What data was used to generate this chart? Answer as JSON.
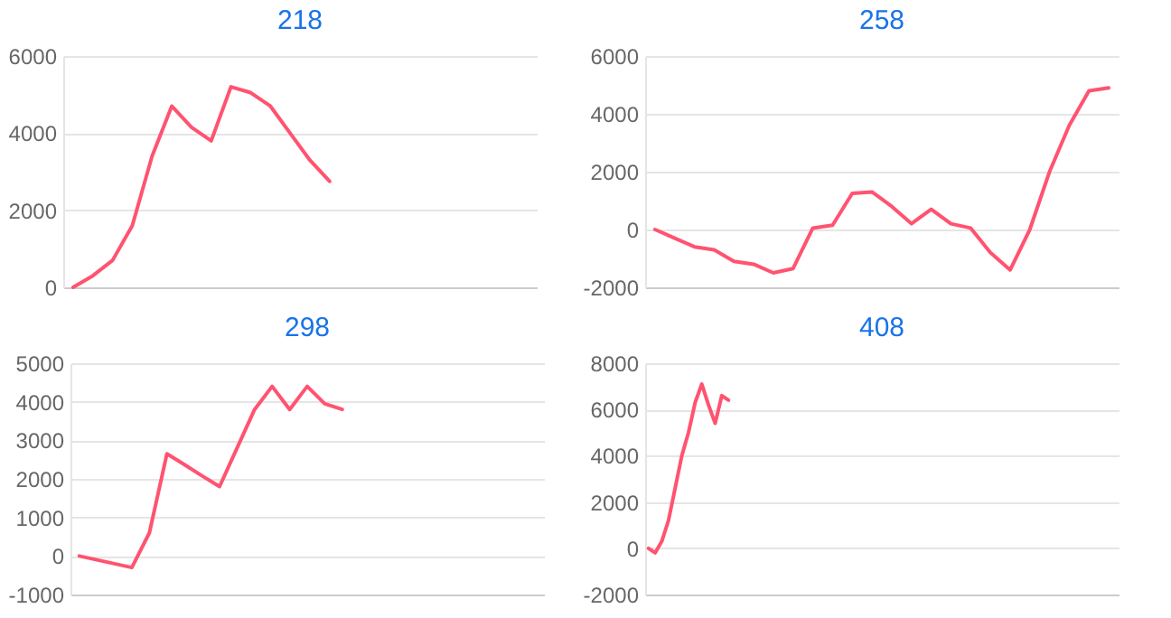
{
  "chart_data": [
    {
      "type": "line",
      "title": "218",
      "categories": [
        null,
        null,
        null,
        null,
        null,
        null,
        null,
        null,
        null,
        null,
        null,
        null,
        null,
        null,
        null,
        null,
        null,
        null,
        null,
        null,
        null,
        null,
        null,
        null
      ],
      "series": [
        {
          "color": "#ff5370",
          "values": [
            0,
            300,
            700,
            1600,
            3400,
            4700,
            4150,
            3800,
            5200,
            5050,
            4700,
            4000,
            3300,
            2750,
            null,
            null,
            null,
            null,
            null,
            null,
            null,
            null,
            null,
            null
          ]
        }
      ],
      "ylim": [
        0,
        6000
      ],
      "yticks": [
        0,
        2000,
        4000,
        6000
      ],
      "grid": "y",
      "tick_labels": "y",
      "marker": "none",
      "line_style": "solid"
    },
    {
      "type": "line",
      "title": "258",
      "categories": [
        null,
        null,
        null,
        null,
        null,
        null,
        null,
        null,
        null,
        null,
        null,
        null,
        null,
        null,
        null,
        null,
        null,
        null,
        null,
        null,
        null,
        null,
        null,
        null
      ],
      "series": [
        {
          "color": "#ff5370",
          "values": [
            0,
            -300,
            -600,
            -700,
            -1100,
            -1200,
            -1500,
            -1350,
            50,
            150,
            1250,
            1300,
            800,
            200,
            700,
            200,
            50,
            -800,
            -1400,
            0,
            2000,
            3600,
            4800,
            4900
          ]
        }
      ],
      "ylim": [
        -2000,
        6000
      ],
      "yticks": [
        -2000,
        0,
        2000,
        4000,
        6000
      ],
      "grid": "y",
      "tick_labels": "y",
      "marker": "none",
      "line_style": "solid"
    },
    {
      "type": "line",
      "title": "298",
      "categories": [
        null,
        null,
        null,
        null,
        null,
        null,
        null,
        null,
        null,
        null,
        null,
        null,
        null,
        null,
        null,
        null,
        null,
        null,
        null,
        null,
        null,
        null,
        null,
        null,
        null,
        null,
        null
      ],
      "series": [
        {
          "color": "#ff5370",
          "values": [
            0,
            -100,
            -200,
            -300,
            600,
            2650,
            2370,
            2080,
            1800,
            2800,
            3800,
            4400,
            3800,
            4400,
            3950,
            3800,
            null,
            null,
            null,
            null,
            null,
            null,
            null,
            null,
            null,
            null,
            null
          ]
        }
      ],
      "ylim": [
        -1000,
        5000
      ],
      "yticks": [
        -1000,
        0,
        1000,
        2000,
        3000,
        4000,
        5000
      ],
      "grid": "y",
      "tick_labels": "y",
      "marker": "none",
      "line_style": "solid"
    },
    {
      "type": "line",
      "title": "408",
      "categories": [
        null,
        null,
        null,
        null,
        null,
        null,
        null,
        null,
        null,
        null,
        null,
        null,
        null,
        null,
        null,
        null,
        null,
        null,
        null,
        null,
        null,
        null,
        null,
        null,
        null,
        null,
        null,
        null,
        null,
        null,
        null,
        null,
        null,
        null,
        null,
        null,
        null,
        null,
        null,
        null,
        null,
        null,
        null,
        null,
        null,
        null,
        null,
        null,
        null,
        null,
        null,
        null,
        null,
        null,
        null,
        null,
        null,
        null,
        null,
        null,
        null,
        null,
        null,
        null,
        null,
        null,
        null,
        null,
        null,
        null,
        null
      ],
      "series": [
        {
          "color": "#ff5370",
          "values": [
            0,
            -200,
            300,
            1200,
            2600,
            4000,
            5000,
            6300,
            7100,
            6200,
            5400,
            6600,
            6400,
            null,
            null,
            null,
            null,
            null,
            null,
            null,
            null,
            null,
            null,
            null,
            null,
            null,
            null,
            null,
            null,
            null,
            null,
            null,
            null,
            null,
            null,
            null,
            null,
            null,
            null,
            null,
            null,
            null,
            null,
            null,
            null,
            null,
            null,
            null,
            null,
            null,
            null,
            null,
            null,
            null,
            null,
            null,
            null,
            null,
            null,
            null,
            null,
            null,
            null,
            null,
            null,
            null,
            null,
            null,
            null,
            null,
            null
          ]
        }
      ],
      "ylim": [
        -2000,
        8000
      ],
      "yticks": [
        -2000,
        0,
        2000,
        4000,
        6000,
        8000
      ],
      "grid": "y",
      "tick_labels": "y",
      "marker": "none",
      "line_style": "solid"
    }
  ]
}
